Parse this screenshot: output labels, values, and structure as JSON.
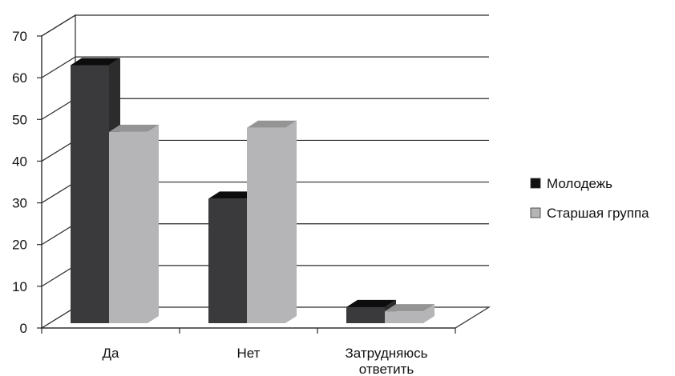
{
  "chart_data": {
    "type": "bar",
    "title": "",
    "xlabel": "",
    "ylabel": "",
    "ylim": [
      0,
      70
    ],
    "yticks": [
      0,
      10,
      20,
      30,
      40,
      50,
      60,
      70
    ],
    "categories": [
      {
        "lines": [
          "Да"
        ]
      },
      {
        "lines": [
          "Нет"
        ]
      },
      {
        "lines": [
          "Затрудняюсь",
          "ответить"
        ]
      }
    ],
    "series": [
      {
        "name": "Молодежь",
        "values": [
          63,
          31,
          5
        ],
        "color": "#3a3a3c"
      },
      {
        "name": "Старшая группа",
        "values": [
          47,
          48,
          4
        ],
        "color": "#b5b4b6"
      }
    ],
    "legend_position": "right",
    "grid": true,
    "style": "3d-clustered-column"
  }
}
